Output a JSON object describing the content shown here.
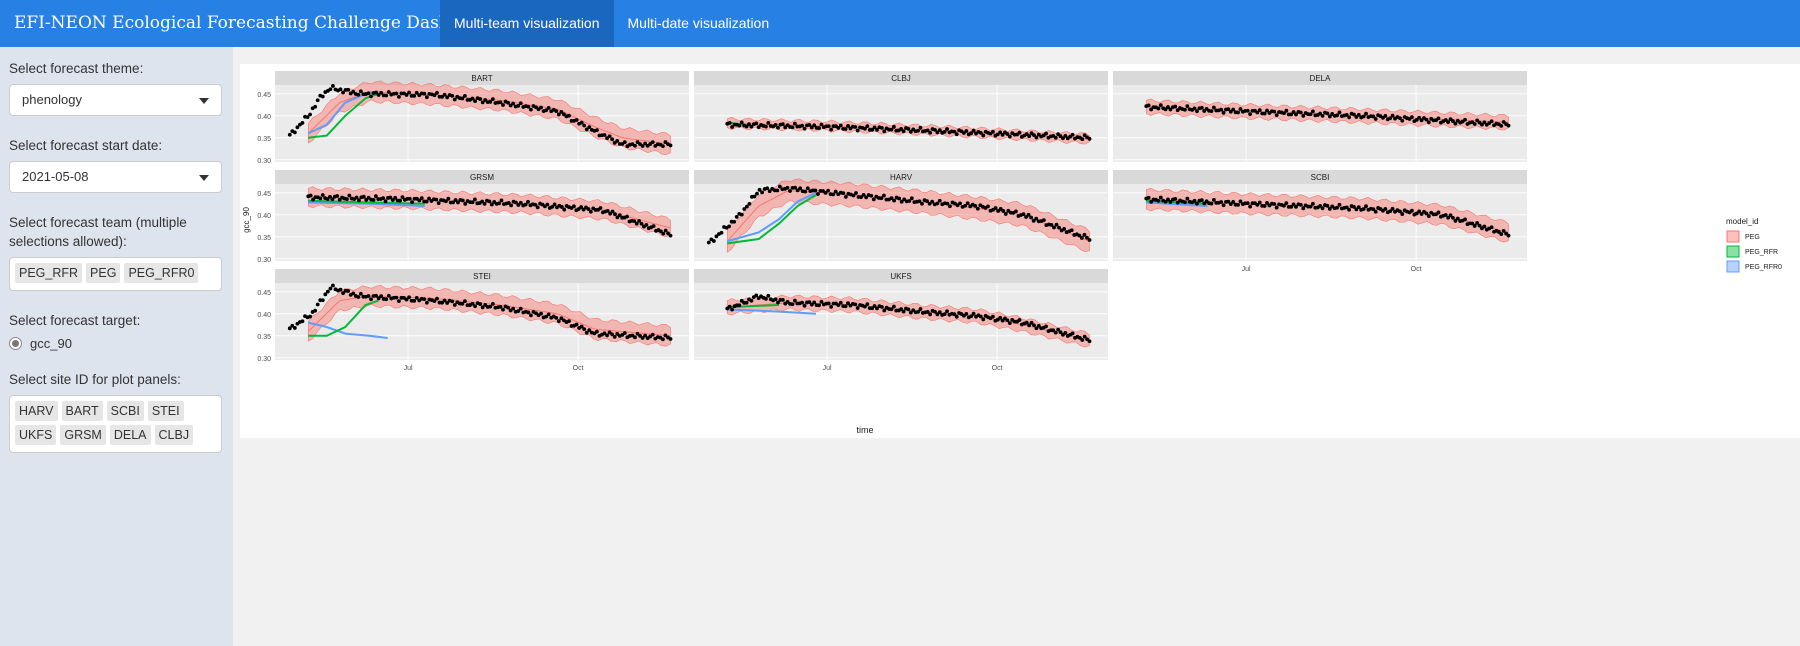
{
  "navbar": {
    "title": "EFI-NEON Ecological Forecasting Challenge Dashboard",
    "tabs": [
      {
        "label": "Multi-team visualization",
        "active": true
      },
      {
        "label": "Multi-date visualization",
        "active": false
      }
    ]
  },
  "sidebar": {
    "theme_label": "Select forecast theme:",
    "theme_value": "phenology",
    "date_label": "Select forecast start date:",
    "date_value": "2021-05-08",
    "team_label": "Select forecast team (multiple selections allowed):",
    "teams": [
      "PEG_RFR",
      "PEG",
      "PEG_RFR0"
    ],
    "target_label": "Select forecast target:",
    "target_value": "gcc_90",
    "site_label": "Select site ID for plot panels:",
    "sites": [
      "HARV",
      "BART",
      "SCBI",
      "STEI",
      "UKFS",
      "GRSM",
      "DELA",
      "CLBJ"
    ]
  },
  "colors": {
    "navbar": "#2780e3",
    "active_tab": "#1967be",
    "PEG": "#f8766d",
    "PEG_RFR": "#00ba38",
    "PEG_RFR0": "#619cff"
  },
  "chart_data": {
    "type": "line",
    "xlabel": "time",
    "ylabel": "gcc_90",
    "x_ticks": [
      "Jul",
      "Oct"
    ],
    "y_ticks": [
      0.3,
      0.35,
      0.4,
      0.45
    ],
    "ylim": [
      0.295,
      0.47
    ],
    "xlim": [
      "2021-04-20",
      "2021-11-30"
    ],
    "legend_title": "model_id",
    "legend": [
      "PEG",
      "PEG_RFR",
      "PEG_RFR0"
    ],
    "legend_position": "right",
    "panels": [
      {
        "site": "BART",
        "observed": [
          [
            "2021-04-28",
            0.355
          ],
          [
            "2021-05-08",
            0.4
          ],
          [
            "2021-05-15",
            0.445
          ],
          [
            "2021-05-20",
            0.463
          ],
          [
            "2021-06-05",
            0.45
          ],
          [
            "2021-07-15",
            0.448
          ],
          [
            "2021-08-20",
            0.43
          ],
          [
            "2021-09-20",
            0.41
          ],
          [
            "2021-10-10",
            0.365
          ],
          [
            "2021-10-25",
            0.335
          ],
          [
            "2021-11-20",
            0.335
          ]
        ],
        "PEG": {
          "mean": [
            [
              "2021-05-08",
              0.36
            ],
            [
              "2021-05-25",
              0.43
            ],
            [
              "2021-06-10",
              0.455
            ],
            [
              "2021-07-15",
              0.448
            ],
            [
              "2021-08-20",
              0.435
            ],
            [
              "2021-09-20",
              0.415
            ],
            [
              "2021-10-10",
              0.375
            ],
            [
              "2021-10-25",
              0.35
            ],
            [
              "2021-11-20",
              0.335
            ]
          ],
          "band": 0.022
        },
        "PEG_RFR": [
          [
            "2021-05-08",
            0.35
          ],
          [
            "2021-05-18",
            0.355
          ],
          [
            "2021-05-28",
            0.4
          ],
          [
            "2021-06-08",
            0.44
          ],
          [
            "2021-06-15",
            0.45
          ]
        ],
        "PEG_RFR0": [
          [
            "2021-05-08",
            0.36
          ],
          [
            "2021-05-18",
            0.38
          ],
          [
            "2021-05-28",
            0.43
          ],
          [
            "2021-06-08",
            0.45
          ],
          [
            "2021-06-15",
            0.455
          ]
        ]
      },
      {
        "site": "CLBJ",
        "observed": [
          [
            "2021-05-08",
            0.38
          ],
          [
            "2021-07-01",
            0.375
          ],
          [
            "2021-09-01",
            0.365
          ],
          [
            "2021-11-20",
            0.35
          ]
        ],
        "PEG": {
          "mean": [
            [
              "2021-05-08",
              0.383
            ],
            [
              "2021-07-01",
              0.377
            ],
            [
              "2021-09-01",
              0.366
            ],
            [
              "2021-11-20",
              0.348
            ]
          ],
          "band": 0.01
        },
        "PEG_RFR": [
          [
            "2021-05-08",
            0.385
          ],
          [
            "2021-05-20",
            0.378
          ]
        ],
        "PEG_RFR0": []
      },
      {
        "site": "DELA",
        "observed": [
          [
            "2021-05-08",
            0.42
          ],
          [
            "2021-07-01",
            0.41
          ],
          [
            "2021-09-01",
            0.4
          ],
          [
            "2021-11-20",
            0.38
          ]
        ],
        "PEG": {
          "mean": [
            [
              "2021-05-08",
              0.42
            ],
            [
              "2021-07-01",
              0.41
            ],
            [
              "2021-09-01",
              0.4
            ],
            [
              "2021-11-20",
              0.385
            ]
          ],
          "band": 0.015
        },
        "PEG_RFR": [],
        "PEG_RFR0": []
      },
      {
        "site": "GRSM",
        "observed": [
          [
            "2021-05-08",
            0.44
          ],
          [
            "2021-07-01",
            0.435
          ],
          [
            "2021-09-01",
            0.425
          ],
          [
            "2021-10-15",
            0.41
          ],
          [
            "2021-11-20",
            0.355
          ]
        ],
        "PEG": {
          "mean": [
            [
              "2021-05-08",
              0.44
            ],
            [
              "2021-07-01",
              0.435
            ],
            [
              "2021-09-01",
              0.425
            ],
            [
              "2021-10-15",
              0.41
            ],
            [
              "2021-11-20",
              0.37
            ]
          ],
          "band": 0.02
        },
        "PEG_RFR": [
          [
            "2021-05-08",
            0.432
          ],
          [
            "2021-06-10",
            0.428
          ],
          [
            "2021-07-10",
            0.425
          ]
        ],
        "PEG_RFR0": [
          [
            "2021-05-08",
            0.428
          ],
          [
            "2021-06-10",
            0.425
          ],
          [
            "2021-07-10",
            0.42
          ]
        ]
      },
      {
        "site": "HARV",
        "observed": [
          [
            "2021-04-28",
            0.335
          ],
          [
            "2021-05-15",
            0.4
          ],
          [
            "2021-05-25",
            0.455
          ],
          [
            "2021-06-10",
            0.46
          ],
          [
            "2021-07-15",
            0.445
          ],
          [
            "2021-08-20",
            0.43
          ],
          [
            "2021-09-20",
            0.42
          ],
          [
            "2021-10-15",
            0.4
          ],
          [
            "2021-11-20",
            0.345
          ]
        ],
        "PEG": {
          "mean": [
            [
              "2021-05-08",
              0.34
            ],
            [
              "2021-05-25",
              0.42
            ],
            [
              "2021-06-10",
              0.455
            ],
            [
              "2021-07-15",
              0.445
            ],
            [
              "2021-08-20",
              0.43
            ],
            [
              "2021-09-20",
              0.415
            ],
            [
              "2021-10-15",
              0.4
            ],
            [
              "2021-11-20",
              0.34
            ]
          ],
          "band": 0.025
        },
        "PEG_RFR": [
          [
            "2021-05-08",
            0.335
          ],
          [
            "2021-05-25",
            0.345
          ],
          [
            "2021-06-05",
            0.38
          ],
          [
            "2021-06-15",
            0.42
          ],
          [
            "2021-06-25",
            0.445
          ]
        ],
        "PEG_RFR0": [
          [
            "2021-05-08",
            0.34
          ],
          [
            "2021-05-25",
            0.36
          ],
          [
            "2021-06-05",
            0.39
          ],
          [
            "2021-06-15",
            0.43
          ],
          [
            "2021-06-25",
            0.45
          ]
        ]
      },
      {
        "site": "SCBI",
        "observed": [
          [
            "2021-05-08",
            0.435
          ],
          [
            "2021-07-01",
            0.425
          ],
          [
            "2021-09-01",
            0.415
          ],
          [
            "2021-10-15",
            0.4
          ],
          [
            "2021-11-20",
            0.355
          ]
        ],
        "PEG": {
          "mean": [
            [
              "2021-05-08",
              0.435
            ],
            [
              "2021-07-01",
              0.425
            ],
            [
              "2021-09-01",
              0.415
            ],
            [
              "2021-10-15",
              0.4
            ],
            [
              "2021-11-20",
              0.36
            ]
          ],
          "band": 0.022
        },
        "PEG_RFR": [
          [
            "2021-05-08",
            0.432
          ],
          [
            "2021-06-10",
            0.425
          ]
        ],
        "PEG_RFR0": [
          [
            "2021-05-08",
            0.428
          ],
          [
            "2021-06-10",
            0.42
          ]
        ]
      },
      {
        "site": "STEI",
        "observed": [
          [
            "2021-04-28",
            0.365
          ],
          [
            "2021-05-10",
            0.4
          ],
          [
            "2021-05-20",
            0.46
          ],
          [
            "2021-06-05",
            0.44
          ],
          [
            "2021-07-15",
            0.43
          ],
          [
            "2021-08-20",
            0.415
          ],
          [
            "2021-09-20",
            0.39
          ],
          [
            "2021-10-10",
            0.355
          ],
          [
            "2021-11-20",
            0.345
          ]
        ],
        "PEG": {
          "mean": [
            [
              "2021-05-08",
              0.36
            ],
            [
              "2021-05-25",
              0.43
            ],
            [
              "2021-06-10",
              0.44
            ],
            [
              "2021-07-15",
              0.435
            ],
            [
              "2021-08-20",
              0.42
            ],
            [
              "2021-09-20",
              0.4
            ],
            [
              "2021-10-10",
              0.365
            ],
            [
              "2021-11-20",
              0.35
            ]
          ],
          "band": 0.022
        },
        "PEG_RFR": [
          [
            "2021-05-08",
            0.35
          ],
          [
            "2021-05-18",
            0.35
          ],
          [
            "2021-05-28",
            0.37
          ],
          [
            "2021-06-08",
            0.42
          ],
          [
            "2021-06-15",
            0.43
          ]
        ],
        "PEG_RFR0": [
          [
            "2021-05-08",
            0.38
          ],
          [
            "2021-05-18",
            0.37
          ],
          [
            "2021-05-28",
            0.355
          ],
          [
            "2021-06-10",
            0.35
          ],
          [
            "2021-06-20",
            0.345
          ]
        ]
      },
      {
        "site": "UKFS",
        "observed": [
          [
            "2021-05-08",
            0.41
          ],
          [
            "2021-05-25",
            0.44
          ],
          [
            "2021-06-10",
            0.425
          ],
          [
            "2021-07-15",
            0.42
          ],
          [
            "2021-08-20",
            0.405
          ],
          [
            "2021-09-20",
            0.395
          ],
          [
            "2021-10-15",
            0.38
          ],
          [
            "2021-11-20",
            0.34
          ]
        ],
        "PEG": {
          "mean": [
            [
              "2021-05-08",
              0.415
            ],
            [
              "2021-06-10",
              0.425
            ],
            [
              "2021-07-15",
              0.42
            ],
            [
              "2021-08-20",
              0.405
            ],
            [
              "2021-09-20",
              0.395
            ],
            [
              "2021-10-15",
              0.375
            ],
            [
              "2021-11-20",
              0.34
            ]
          ],
          "band": 0.015
        },
        "PEG_RFR": [
          [
            "2021-05-08",
            0.415
          ],
          [
            "2021-06-05",
            0.42
          ]
        ],
        "PEG_RFR0": [
          [
            "2021-05-08",
            0.41
          ],
          [
            "2021-06-05",
            0.405
          ],
          [
            "2021-06-25",
            0.4
          ]
        ]
      }
    ]
  }
}
